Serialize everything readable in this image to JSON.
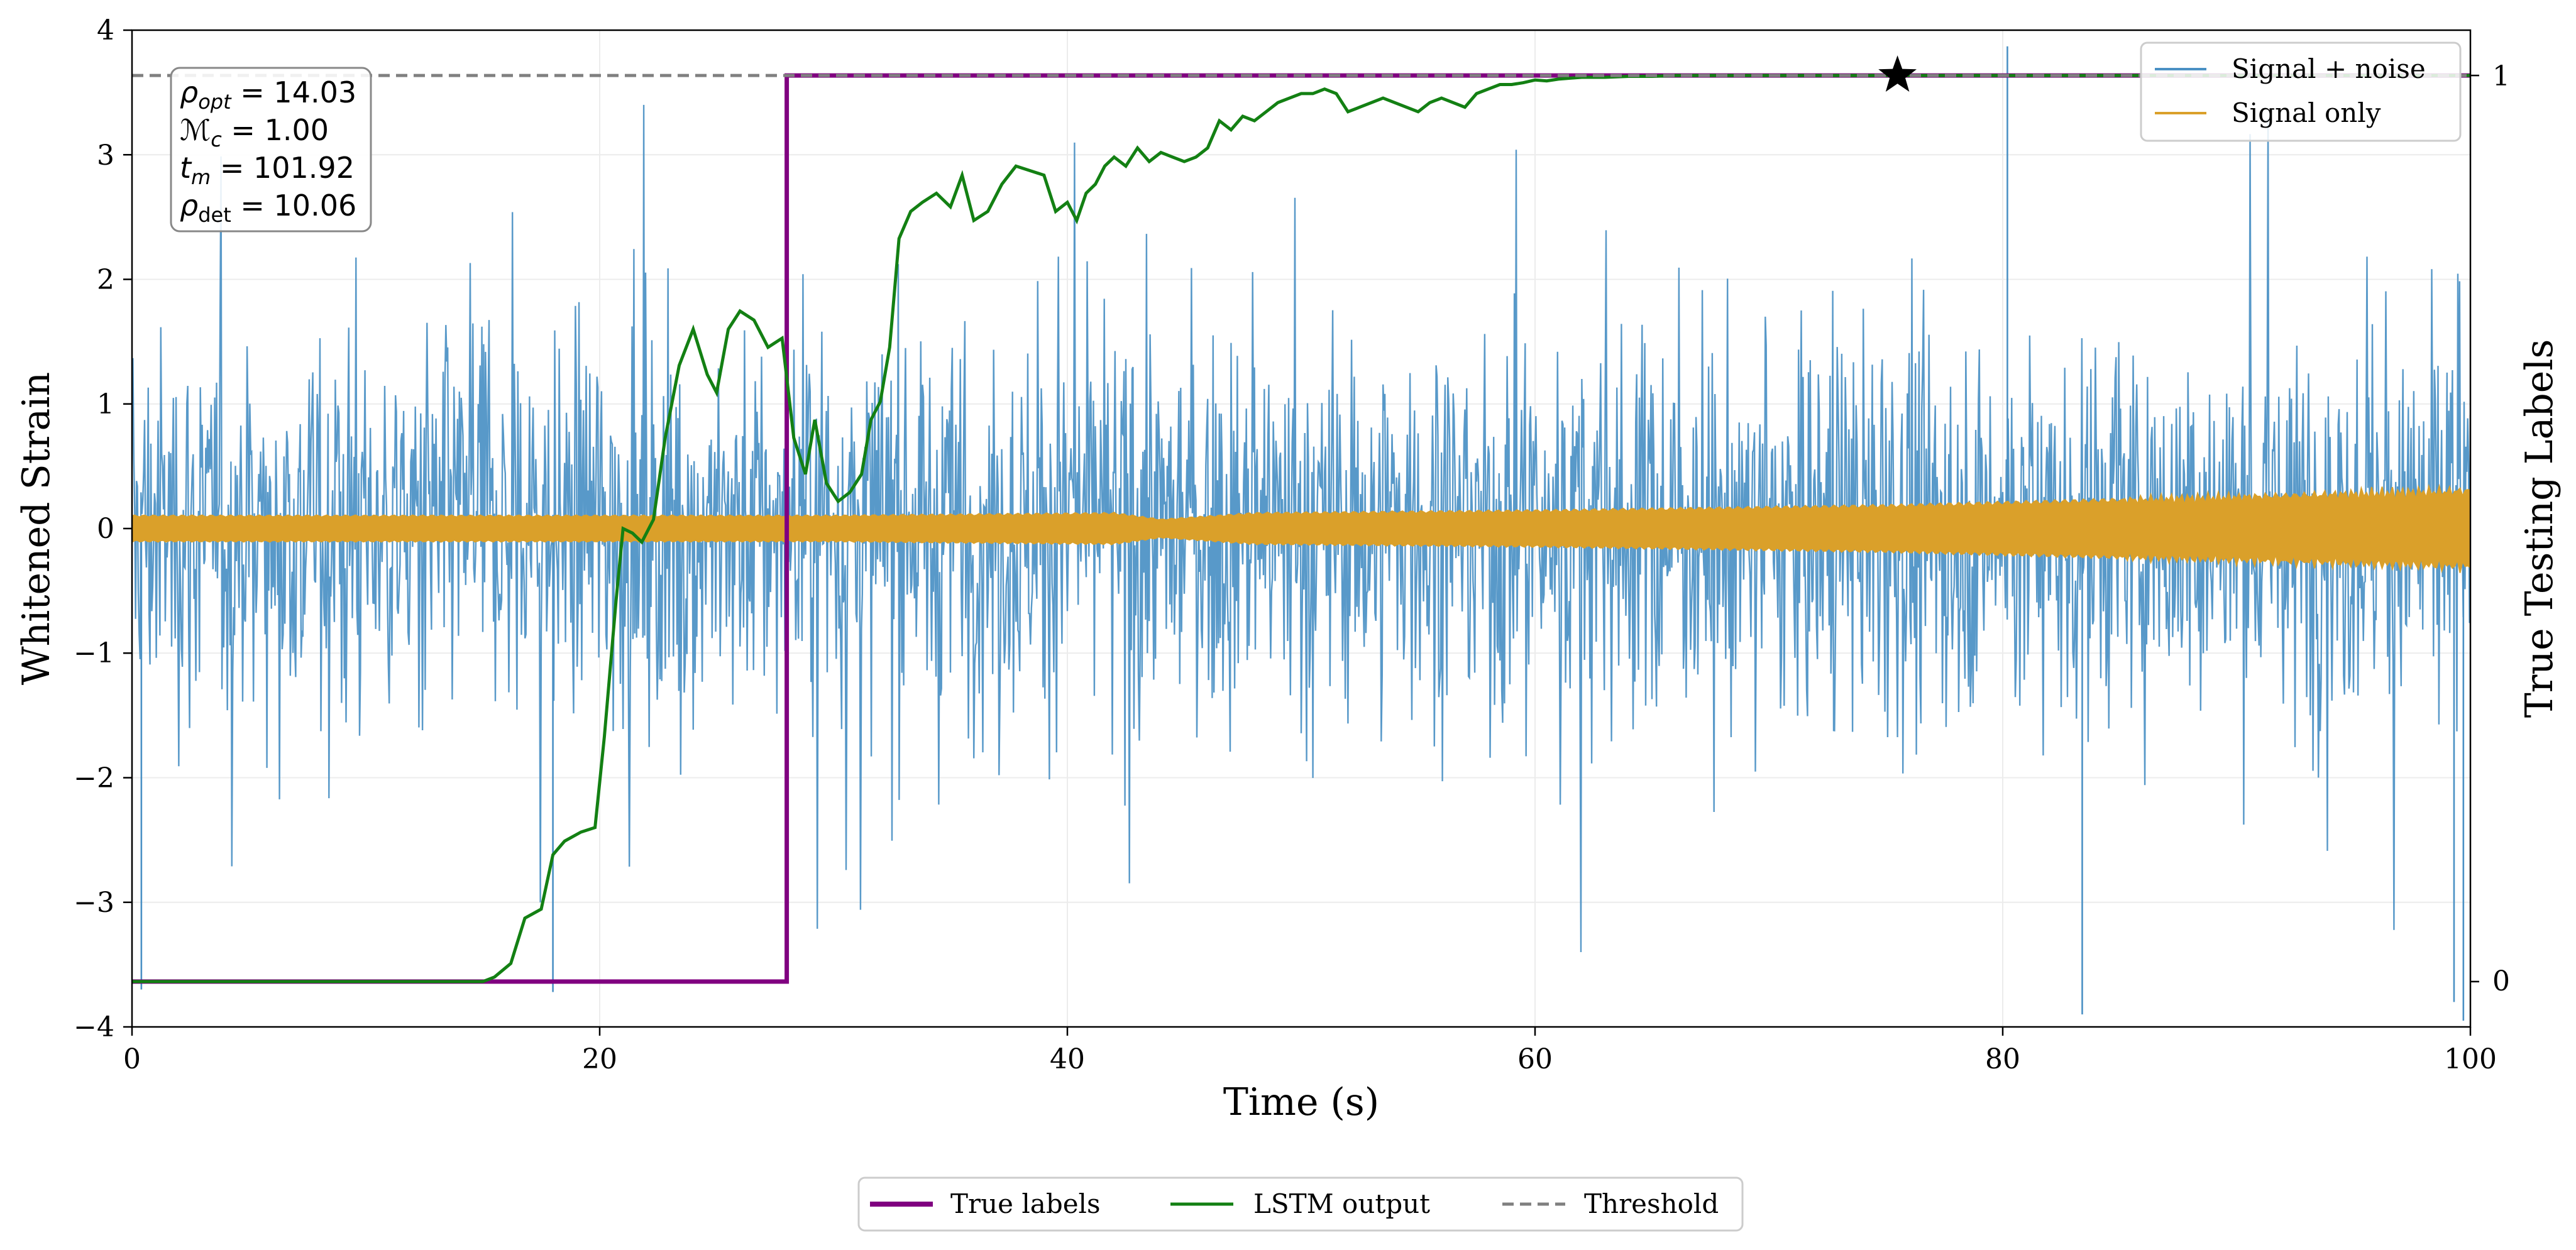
{
  "chart_data": {
    "type": "line",
    "xlabel": "Time (s)",
    "ylabel": "Whitened Strain",
    "ylabel_right": "True Testing Labels",
    "xlim": [
      0,
      100
    ],
    "ylim": [
      -4,
      4
    ],
    "ylim_right": [
      -0.05,
      1.05
    ],
    "x_ticks": [
      0,
      20,
      40,
      60,
      80,
      100
    ],
    "y_ticks": [
      -4,
      -3,
      -2,
      -1,
      0,
      1,
      2,
      3,
      4
    ],
    "y_ticks_right": [
      0,
      1
    ],
    "tick_labels": {
      "x": [
        "0",
        "20",
        "40",
        "60",
        "80",
        "100"
      ],
      "y": [
        "−4",
        "−3",
        "−2",
        "−1",
        "0",
        "1",
        "2",
        "3",
        "4"
      ],
      "y_right": [
        "0",
        "1"
      ]
    },
    "grid": true,
    "noise_series": {
      "name": "Signal + noise",
      "color": "#4a90c4",
      "typical_band": [
        -1.6,
        1.6
      ],
      "peak_spikes": [
        {
          "t": 0.4,
          "v": -3.7
        },
        {
          "t": 18.0,
          "v": -3.72
        },
        {
          "t": 80.2,
          "v": 3.87
        },
        {
          "t": 83.4,
          "v": -3.9
        },
        {
          "t": 99.3,
          "v": -3.8
        },
        {
          "t": 99.7,
          "v": -3.95
        }
      ]
    },
    "signal_series": {
      "name": "Signal only",
      "color": "#daa02a",
      "envelope": [
        {
          "t": 0,
          "a": 0.1
        },
        {
          "t": 30,
          "a": 0.1
        },
        {
          "t": 42,
          "a": 0.12
        },
        {
          "t": 44,
          "a": 0.07
        },
        {
          "t": 48,
          "a": 0.12
        },
        {
          "t": 60,
          "a": 0.14
        },
        {
          "t": 75,
          "a": 0.18
        },
        {
          "t": 90,
          "a": 0.25
        },
        {
          "t": 100,
          "a": 0.3
        }
      ]
    },
    "series": [
      {
        "name": "True labels",
        "color": "#800080",
        "axis": "right",
        "x": [
          0,
          28,
          28,
          100
        ],
        "y": [
          0,
          0,
          1,
          1
        ]
      },
      {
        "name": "LSTM output",
        "color": "#138013",
        "axis": "right",
        "x": [
          0,
          15,
          15.5,
          16.2,
          16.8,
          17.5,
          18.0,
          18.5,
          19.2,
          19.8,
          20.2,
          20.7,
          21.0,
          21.4,
          21.8,
          22.3,
          22.8,
          23.4,
          24.0,
          24.6,
          25.0,
          25.5,
          26.0,
          26.6,
          27.2,
          27.8,
          28.3,
          28.8,
          29.2,
          29.7,
          30.2,
          30.7,
          31.2,
          31.6,
          32.0,
          32.4,
          32.8,
          33.3,
          33.8,
          34.4,
          35.0,
          35.5,
          36.0,
          36.6,
          37.2,
          37.8,
          38.4,
          39.0,
          39.5,
          40.0,
          40.4,
          40.8,
          41.2,
          41.6,
          42.0,
          42.5,
          43.0,
          43.5,
          44.0,
          44.5,
          45.0,
          45.5,
          46.0,
          46.5,
          47.0,
          47.5,
          48.0,
          48.5,
          49.0,
          49.5,
          50.0,
          50.5,
          51.0,
          51.5,
          52.0,
          52.5,
          53.0,
          53.5,
          54.0,
          54.5,
          55.0,
          55.5,
          56.0,
          56.5,
          57.0,
          57.5,
          58.0,
          58.5,
          59.0,
          59.5,
          60.0,
          60.5,
          61.0,
          61.5,
          62.0,
          63.0,
          64.0,
          65.0,
          66.0,
          67.0,
          68.0,
          70.0,
          72.0,
          75.0,
          80.0,
          90.0,
          100.0
        ],
        "y": [
          0.0,
          0.0,
          0.005,
          0.02,
          0.07,
          0.08,
          0.14,
          0.155,
          0.165,
          0.17,
          0.27,
          0.42,
          0.5,
          0.495,
          0.485,
          0.51,
          0.6,
          0.68,
          0.72,
          0.67,
          0.65,
          0.72,
          0.74,
          0.73,
          0.7,
          0.71,
          0.6,
          0.56,
          0.62,
          0.55,
          0.53,
          0.54,
          0.56,
          0.62,
          0.64,
          0.7,
          0.82,
          0.85,
          0.86,
          0.87,
          0.855,
          0.89,
          0.84,
          0.85,
          0.88,
          0.9,
          0.895,
          0.89,
          0.85,
          0.86,
          0.84,
          0.87,
          0.88,
          0.9,
          0.91,
          0.9,
          0.92,
          0.905,
          0.915,
          0.91,
          0.905,
          0.91,
          0.92,
          0.95,
          0.94,
          0.955,
          0.95,
          0.96,
          0.97,
          0.975,
          0.98,
          0.98,
          0.985,
          0.98,
          0.96,
          0.965,
          0.97,
          0.975,
          0.97,
          0.965,
          0.96,
          0.97,
          0.975,
          0.97,
          0.965,
          0.98,
          0.985,
          0.99,
          0.99,
          0.992,
          0.995,
          0.994,
          0.996,
          0.997,
          0.998,
          0.998,
          0.999,
          0.999,
          1.0,
          1.0,
          1.0,
          1.0,
          1.0,
          1.0,
          1.0,
          1.0,
          1.0
        ]
      },
      {
        "name": "Threshold",
        "color": "#808080",
        "axis": "right",
        "dashed": true,
        "x": [
          0,
          100
        ],
        "y": [
          1,
          1
        ]
      }
    ],
    "star_marker": {
      "t": 75.5,
      "label_value": 1
    },
    "annotation_box": {
      "lines": [
        "ρopt = 14.03",
        "Mc = 1.00",
        "tm = 101.92",
        "ρdet = 10.06"
      ],
      "rho_opt": 14.03,
      "mc": 1.0,
      "tm": 101.92,
      "rho_det": 10.06
    },
    "legend_upper": [
      {
        "label": "Signal + noise",
        "color": "#4a90c4"
      },
      {
        "label": "Signal only",
        "color": "#daa02a"
      }
    ],
    "legend_lower": [
      {
        "label": "True labels",
        "color": "#800080"
      },
      {
        "label": "LSTM output",
        "color": "#138013"
      },
      {
        "label": "Threshold",
        "color": "#808080",
        "dashed": true
      }
    ]
  }
}
